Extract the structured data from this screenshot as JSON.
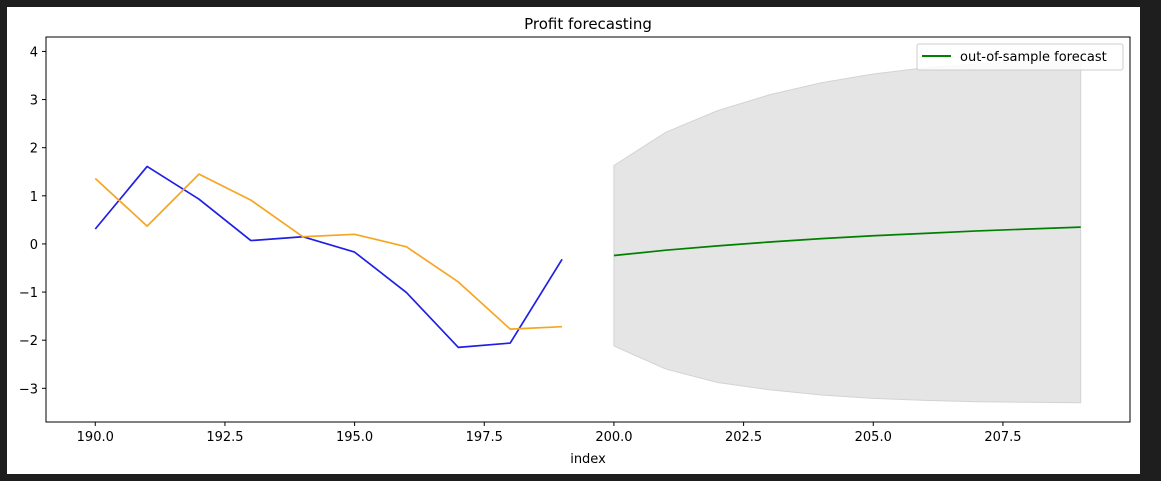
{
  "chart_data": {
    "type": "line",
    "title": "Profit forecasting",
    "xlabel": "index",
    "ylabel": "",
    "xlim": [
      189.05,
      209.95
    ],
    "ylim": [
      -3.7,
      4.3
    ],
    "xticks": [
      190.0,
      192.5,
      195.0,
      197.5,
      200.0,
      202.5,
      205.0,
      207.5
    ],
    "xtick_labels": [
      "190.0",
      "192.5",
      "195.0",
      "197.5",
      "200.0",
      "202.5",
      "205.0",
      "207.5"
    ],
    "yticks": [
      4,
      3,
      2,
      1,
      0,
      -1,
      -2,
      -3
    ],
    "ytick_labels": [
      "4",
      "3",
      "2",
      "1",
      "0",
      "−1",
      "−2",
      "−3"
    ],
    "grid": false,
    "legend": {
      "placement": "top-right",
      "entries": [
        "out-of-sample forecast"
      ]
    },
    "series": [
      {
        "color": "#1f1fe6",
        "x": [
          190,
          191,
          192,
          193,
          194,
          195,
          196,
          197,
          198,
          199
        ],
        "values": [
          0.31,
          1.61,
          0.93,
          0.07,
          0.15,
          -0.17,
          -1.01,
          -2.15,
          -2.06,
          -0.32
        ]
      },
      {
        "color": "#f5a623",
        "x": [
          190,
          191,
          192,
          193,
          194,
          195,
          196,
          197,
          198,
          199
        ],
        "values": [
          1.36,
          0.37,
          1.45,
          0.91,
          0.15,
          0.2,
          -0.06,
          -0.79,
          -1.77,
          -1.72
        ]
      },
      {
        "name": "out-of-sample forecast",
        "color": "#008000",
        "x": [
          200,
          201,
          202,
          203,
          204,
          205,
          206,
          207,
          208,
          209
        ],
        "values": [
          -0.24,
          -0.13,
          -0.04,
          0.04,
          0.11,
          0.17,
          0.22,
          0.27,
          0.31,
          0.35
        ]
      }
    ],
    "confidence_band": {
      "color": "#d3d3d3",
      "x": [
        200,
        201,
        202,
        203,
        204,
        205,
        206,
        207,
        208,
        209
      ],
      "upper": [
        1.63,
        2.32,
        2.77,
        3.1,
        3.35,
        3.53,
        3.66,
        3.74,
        3.8,
        3.84
      ],
      "lower": [
        -2.12,
        -2.6,
        -2.88,
        -3.03,
        -3.14,
        -3.21,
        -3.25,
        -3.28,
        -3.29,
        -3.3
      ]
    }
  }
}
